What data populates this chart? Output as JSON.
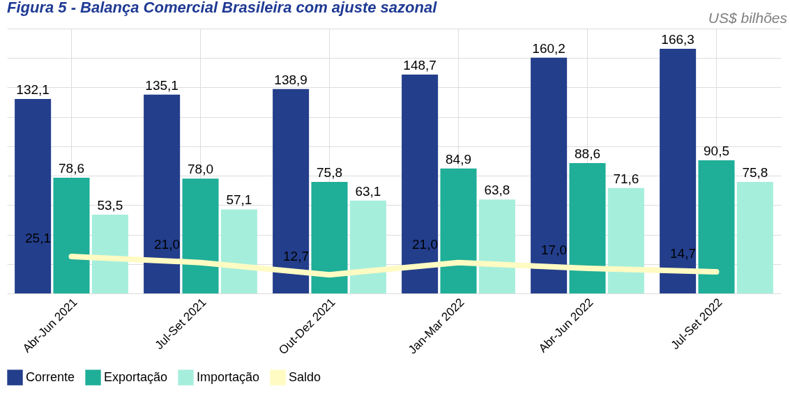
{
  "chart_data": {
    "type": "bar",
    "title": "Figura 5 - Balança Comercial Brasileira com ajuste sazonal",
    "subtitle": "US$ bilhões",
    "categories": [
      "Abr-Jun 2021",
      "Jul-Set 2021",
      "Out-Dez 2021",
      "Jan-Mar 2022",
      "Abr-Jun 2022",
      "Jul-Set 2022"
    ],
    "series": [
      {
        "name": "Corrente",
        "color": "#233e8b",
        "values": [
          132.1,
          135.1,
          138.9,
          148.7,
          160.2,
          166.3
        ],
        "value_labels": [
          "132,1",
          "135,1",
          "138,9",
          "148,7",
          "160,2",
          "166,3"
        ]
      },
      {
        "name": "Exportação",
        "color": "#1fae98",
        "values": [
          78.6,
          78.0,
          75.8,
          84.9,
          88.6,
          90.5
        ],
        "value_labels": [
          "78,6",
          "78,0",
          "75,8",
          "84,9",
          "88,6",
          "90,5"
        ]
      },
      {
        "name": "Importação",
        "color": "#a6eedc",
        "values": [
          53.5,
          57.1,
          63.1,
          63.8,
          71.6,
          75.8
        ],
        "value_labels": [
          "53,5",
          "57,1",
          "63,1",
          "63,8",
          "71,6",
          "75,8"
        ]
      },
      {
        "name": "Saldo",
        "color": "#fffbc2",
        "type": "line",
        "values": [
          25.1,
          21.0,
          12.7,
          21.0,
          17.0,
          14.7
        ],
        "value_labels": [
          "25,1",
          "21,0",
          "12,7",
          "21,0",
          "17,0",
          "14,7"
        ]
      }
    ],
    "tick_labels": "x",
    "grid": true,
    "legend": "bottom"
  }
}
